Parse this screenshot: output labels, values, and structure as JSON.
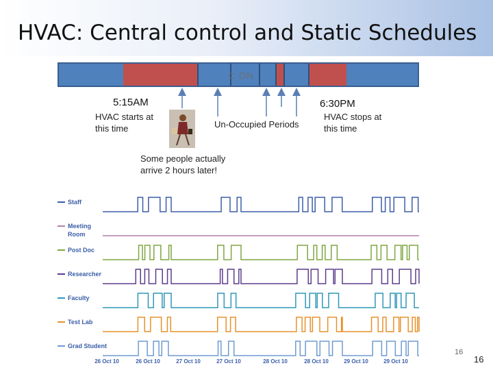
{
  "slide": {
    "title": "HVAC: Central control and Static Schedules",
    "page_number_small": "16",
    "page_number": "16"
  },
  "schedule_bar": {
    "label": "C ON",
    "colors": {
      "on": "#c0504d",
      "off": "#4f81bd"
    }
  },
  "annotations": {
    "start_time": "5:15AM",
    "start_text": [
      "HVAC starts at",
      "this time"
    ],
    "stop_time": "6:30PM",
    "stop_text": [
      "HVAC stops at",
      "this time"
    ],
    "unoccupied": "Un-Occupied Periods",
    "late_note": [
      "Some people actually",
      "arrive 2 hours later!"
    ]
  },
  "occupancy_chart": {
    "series": [
      {
        "name": "Staff",
        "label_lines": [
          "Staff"
        ],
        "color": "#3b5ea8"
      },
      {
        "name": "Meeting Room",
        "label_lines": [
          "Meeting",
          "Room"
        ],
        "color": "#b07fae"
      },
      {
        "name": "Post Doc",
        "label_lines": [
          "Post Doc"
        ],
        "color": "#7ea641"
      },
      {
        "name": "Researcher",
        "label_lines": [
          "Researcher"
        ],
        "color": "#5c3b8c"
      },
      {
        "name": "Faculty",
        "label_lines": [
          "Faculty"
        ],
        "color": "#2e97b8"
      },
      {
        "name": "Test Lab",
        "label_lines": [
          "Test Lab"
        ],
        "color": "#e8902c"
      },
      {
        "name": "Grad Student",
        "label_lines": [
          "Grad Student"
        ],
        "color": "#6e9ad0"
      }
    ],
    "x_ticks": [
      "26 Oct 10",
      "26 Oct 10",
      "27 Oct 10",
      "27 Oct 10",
      "28 Oct 10",
      "28 Oct 10",
      "29 Oct 10",
      "29 Oct 10"
    ]
  }
}
